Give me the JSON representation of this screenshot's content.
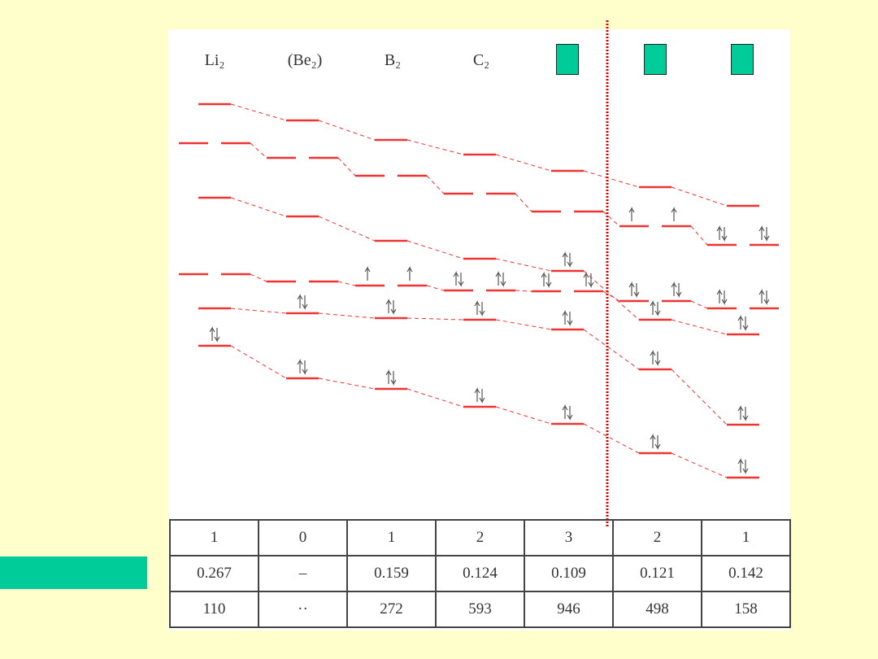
{
  "header": {
    "molecules": [
      "Li₂",
      "(Be₂)",
      "B₂",
      "C₂"
    ]
  },
  "table": {
    "rows": [
      [
        "1",
        "0",
        "1",
        "2",
        "3",
        "2",
        "1"
      ],
      [
        "0.267",
        "–",
        "0.159",
        "0.124",
        "0.109",
        "0.121",
        "0.142"
      ],
      [
        "110",
        "··",
        "272",
        "593",
        "946",
        "498",
        "158"
      ]
    ]
  }
}
